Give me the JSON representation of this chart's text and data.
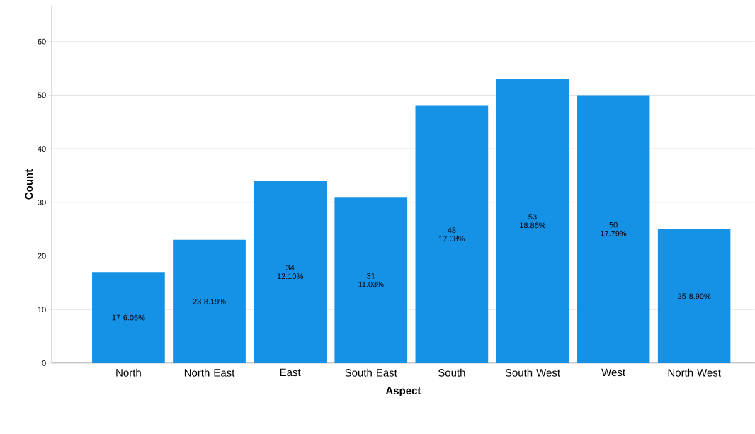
{
  "chart_data": {
    "type": "bar",
    "xlabel": "Aspect",
    "ylabel": "Count",
    "categories": [
      "North",
      "North East",
      "East",
      "South East",
      "South",
      "South West",
      "West",
      "North West"
    ],
    "values": [
      17,
      23,
      34,
      31,
      48,
      53,
      50,
      25
    ],
    "value_labels": [
      "17 6.05%",
      "23 8.19%",
      "34 12.10%",
      "31 11.03%",
      "48 17.08%",
      "53 18.86%",
      "50 17.79%",
      "25 8.90%"
    ],
    "color": "#1591e6",
    "ylim": [
      0,
      66.7
    ],
    "yticks": [
      0,
      10,
      20,
      30,
      40,
      50,
      60
    ],
    "grid": "y"
  }
}
